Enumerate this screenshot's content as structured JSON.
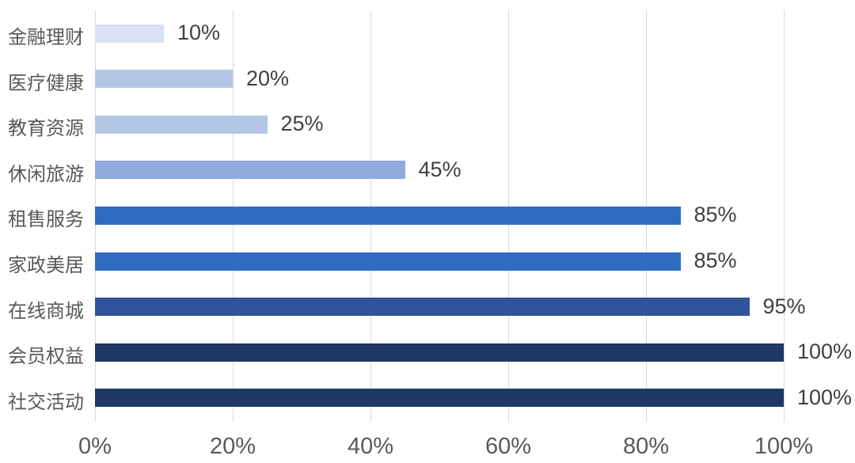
{
  "chart_data": {
    "type": "bar",
    "orientation": "horizontal",
    "title": "",
    "xlabel": "",
    "ylabel": "",
    "categories": [
      "金融理财",
      "医疗健康",
      "教育资源",
      "休闲旅游",
      "租售服务",
      "家政美居",
      "在线商城",
      "会员权益",
      "社交活动"
    ],
    "values": [
      10,
      20,
      25,
      45,
      85,
      85,
      95,
      100,
      100
    ],
    "value_labels": [
      "10%",
      "20%",
      "25%",
      "45%",
      "85%",
      "85%",
      "95%",
      "100%",
      "100%"
    ],
    "bar_colors": [
      "#d9e2f3",
      "#b4c7e7",
      "#b4c7e7",
      "#8faadc",
      "#2f6bc0",
      "#2f6bc0",
      "#30549c",
      "#1f3864",
      "#1f3864"
    ],
    "x_ticks": [
      "0%",
      "20%",
      "40%",
      "60%",
      "80%",
      "100%"
    ],
    "x_tick_values": [
      0,
      20,
      40,
      60,
      80,
      100
    ],
    "xlim": [
      0,
      100
    ],
    "grid": "vertical",
    "legend": "none",
    "colors": {
      "gridline": "#d9d9d9",
      "category_label": "#595959",
      "value_label": "#404040",
      "axis_tick_label": "#595959",
      "background": "#ffffff"
    }
  }
}
